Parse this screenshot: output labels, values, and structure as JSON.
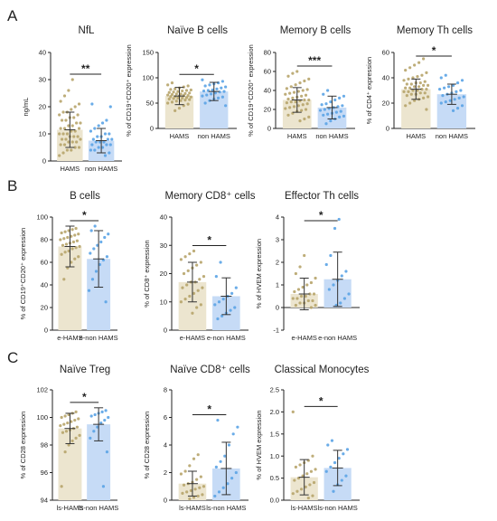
{
  "colors": {
    "hams": "#b7a46a",
    "hams_fill": "#ece5cf",
    "non_hams": "#5aa3e6",
    "non_hams_fill": "#c6dbf6",
    "axis": "#222222",
    "error_bar": "#333333"
  },
  "panel_labels": [
    "A",
    "B",
    "C"
  ],
  "chart_data": [
    {
      "type": "bar",
      "panel": "A",
      "title": "NfL",
      "ylabel": "ng/mL",
      "ylim": [
        0,
        40
      ],
      "yticks": [
        0,
        10,
        20,
        30,
        40
      ],
      "categories": [
        "HAMS",
        "non HAMS"
      ],
      "series": [
        {
          "values": [
            11.5,
            7.5
          ]
        }
      ],
      "error_sd": [
        6.5,
        4.5
      ],
      "points": [
        [
          2,
          3,
          4,
          4,
          5,
          5,
          6,
          6,
          7,
          7,
          7,
          8,
          8,
          8,
          9,
          9,
          9,
          10,
          10,
          10,
          11,
          11,
          12,
          12,
          12,
          13,
          13,
          14,
          14,
          15,
          15,
          16,
          16,
          17,
          17,
          18,
          18,
          19,
          20,
          21,
          22,
          24,
          26,
          30
        ],
        [
          2,
          3,
          4,
          4,
          5,
          5,
          6,
          6,
          6,
          7,
          7,
          7,
          8,
          8,
          8,
          9,
          9,
          10,
          10,
          11,
          12,
          13,
          14,
          15,
          20,
          21
        ]
      ],
      "significance": "**"
    },
    {
      "type": "bar",
      "panel": "A",
      "title": "Naïve B cells",
      "ylabel": "% of CD19⁺CD20⁺ expression",
      "ylim": [
        0,
        150
      ],
      "yticks": [
        0,
        50,
        100,
        150
      ],
      "categories": [
        "HAMS",
        "non HAMS"
      ],
      "series": [
        {
          "values": [
            64,
            73
          ]
        }
      ],
      "error_sd": [
        17,
        18
      ],
      "points": [
        [
          35,
          40,
          45,
          48,
          50,
          52,
          54,
          55,
          56,
          57,
          58,
          59,
          60,
          60,
          61,
          62,
          63,
          63,
          64,
          65,
          65,
          66,
          67,
          68,
          68,
          69,
          70,
          71,
          72,
          73,
          74,
          75,
          76,
          77,
          78,
          80,
          82,
          84,
          86,
          90
        ],
        [
          45,
          50,
          55,
          58,
          60,
          62,
          64,
          66,
          68,
          70,
          72,
          73,
          74,
          75,
          76,
          78,
          80,
          82,
          84,
          86,
          88,
          90,
          93,
          96
        ]
      ],
      "significance": "*"
    },
    {
      "type": "bar",
      "panel": "A",
      "title": "Memory B cells",
      "ylabel": "% of CD19⁺CD20⁺ expression",
      "ylim": [
        0,
        80
      ],
      "yticks": [
        0,
        20,
        40,
        60,
        80
      ],
      "categories": [
        "HAMS",
        "non HAMS"
      ],
      "series": [
        {
          "values": [
            30,
            22
          ]
        }
      ],
      "error_sd": [
        13,
        12
      ],
      "points": [
        [
          8,
          10,
          12,
          14,
          16,
          18,
          19,
          20,
          21,
          22,
          23,
          24,
          25,
          26,
          27,
          28,
          28,
          29,
          30,
          30,
          31,
          32,
          33,
          34,
          35,
          36,
          37,
          38,
          39,
          40,
          41,
          42,
          44,
          46,
          48,
          50,
          52,
          55,
          58,
          60
        ],
        [
          5,
          8,
          10,
          12,
          13,
          14,
          15,
          16,
          17,
          18,
          19,
          20,
          21,
          22,
          23,
          24,
          25,
          26,
          28,
          30,
          32,
          34,
          36,
          40
        ]
      ],
      "significance": "***"
    },
    {
      "type": "bar",
      "panel": "A",
      "title": "Memory Th cells",
      "ylabel": "% of CD4⁺ expression",
      "ylim": [
        0,
        60
      ],
      "yticks": [
        0,
        20,
        40,
        60
      ],
      "categories": [
        "HAMS",
        "non HAMS"
      ],
      "series": [
        {
          "values": [
            31,
            27
          ]
        }
      ],
      "error_sd": [
        8,
        8
      ],
      "points": [
        [
          15,
          18,
          20,
          22,
          23,
          24,
          25,
          26,
          27,
          27,
          28,
          28,
          29,
          29,
          30,
          30,
          31,
          31,
          32,
          32,
          33,
          33,
          34,
          34,
          35,
          35,
          36,
          36,
          37,
          38,
          39,
          40,
          41,
          42,
          44,
          46,
          48,
          50,
          52,
          55
        ],
        [
          14,
          16,
          18,
          20,
          21,
          22,
          23,
          24,
          25,
          26,
          27,
          28,
          29,
          30,
          31,
          32,
          33,
          34,
          36,
          38,
          40,
          42
        ]
      ],
      "significance": "*"
    },
    {
      "type": "bar",
      "panel": "B",
      "title": "B cells",
      "ylabel": "% of CD19⁺CD20⁺ expression",
      "ylim": [
        0,
        100
      ],
      "yticks": [
        0,
        20,
        40,
        60,
        80,
        100
      ],
      "categories": [
        "e-HAMS",
        "e-non HAMS"
      ],
      "series": [
        {
          "values": [
            74,
            63
          ]
        }
      ],
      "error_sd": [
        18,
        25
      ],
      "points": [
        [
          45,
          55,
          60,
          63,
          65,
          67,
          69,
          70,
          72,
          73,
          74,
          75,
          76,
          77,
          78,
          79,
          80,
          81,
          82,
          83,
          84,
          85,
          86,
          87,
          88,
          89,
          90
        ],
        [
          25,
          35,
          45,
          52,
          58,
          62,
          65,
          68,
          72,
          75,
          78,
          82,
          85,
          88,
          92
        ]
      ],
      "significance": "*"
    },
    {
      "type": "bar",
      "panel": "B",
      "title": "Memory CD8⁺ cells",
      "ylabel": "% of CD8⁺ expression",
      "ylim": [
        0,
        40
      ],
      "yticks": [
        0,
        10,
        20,
        30,
        40
      ],
      "categories": [
        "e-HAMS",
        "e-non HAMS"
      ],
      "series": [
        {
          "values": [
            17,
            12
          ]
        }
      ],
      "error_sd": [
        7,
        6.5
      ],
      "points": [
        [
          6,
          8,
          9,
          10,
          11,
          12,
          13,
          14,
          15,
          15,
          16,
          17,
          17,
          18,
          19,
          20,
          21,
          22,
          23,
          24,
          25,
          26,
          27,
          28
        ],
        [
          4,
          5,
          6,
          7,
          8,
          9,
          10,
          11,
          12,
          13,
          15,
          19,
          24
        ]
      ],
      "significance": "*"
    },
    {
      "type": "bar",
      "panel": "B",
      "title": "Effector Th cells",
      "ylabel": "% of HVEM expression",
      "ylim": [
        -1,
        4
      ],
      "yticks": [
        -1,
        0,
        1,
        2,
        3,
        4
      ],
      "categories": [
        "e-HAMS",
        "e-non HAMS"
      ],
      "series": [
        {
          "values": [
            0.6,
            1.25
          ]
        }
      ],
      "error_sd": [
        0.7,
        1.2
      ],
      "points": [
        [
          0.0,
          0.1,
          0.1,
          0.2,
          0.2,
          0.3,
          0.3,
          0.4,
          0.4,
          0.5,
          0.5,
          0.6,
          0.6,
          0.7,
          0.8,
          0.9,
          1.0,
          1.1,
          1.3,
          1.5,
          1.8,
          2.3
        ],
        [
          0.1,
          0.2,
          0.4,
          0.6,
          0.8,
          1.0,
          1.2,
          1.4,
          1.6,
          1.9,
          2.3,
          3.5,
          3.9
        ]
      ],
      "significance": "*"
    },
    {
      "type": "bar",
      "panel": "C",
      "title": "Naïve Treg",
      "ylabel": "% of CD28 expression",
      "ylim": [
        94,
        102
      ],
      "yticks": [
        94,
        96,
        98,
        100,
        102
      ],
      "categories": [
        "ls-HAMS",
        "ls-non HAMS"
      ],
      "series": [
        {
          "values": [
            99.2,
            99.5
          ]
        }
      ],
      "error_sd": [
        1.1,
        1.2
      ],
      "points": [
        [
          95.0,
          97.5,
          98.0,
          98.3,
          98.5,
          98.7,
          98.9,
          99.0,
          99.1,
          99.2,
          99.3,
          99.4,
          99.5,
          99.6,
          99.7,
          99.8,
          99.9,
          100.0,
          100.1,
          100.2,
          100.3,
          100.4
        ],
        [
          95.0,
          97.5,
          98.5,
          99.0,
          99.3,
          99.6,
          99.8,
          100.0,
          100.1,
          100.2,
          100.3,
          100.4,
          100.5
        ]
      ],
      "significance": "*"
    },
    {
      "type": "bar",
      "panel": "C",
      "title": "Naïve CD8⁺ cells",
      "ylabel": "% of CD28 expression",
      "ylim": [
        0,
        8
      ],
      "yticks": [
        0,
        2,
        4,
        6,
        8
      ],
      "categories": [
        "ls-HAMS",
        "ls-non HAMS"
      ],
      "series": [
        {
          "values": [
            1.2,
            2.3
          ]
        }
      ],
      "error_sd": [
        0.9,
        1.9
      ],
      "points": [
        [
          0.1,
          0.2,
          0.3,
          0.4,
          0.5,
          0.6,
          0.7,
          0.8,
          0.9,
          1.0,
          1.1,
          1.2,
          1.3,
          1.5,
          1.7,
          1.9,
          2.1,
          2.5,
          3.0,
          3.3
        ],
        [
          0.3,
          0.6,
          0.9,
          1.2,
          1.6,
          2.0,
          2.4,
          2.8,
          3.2,
          4.0,
          4.8,
          5.3,
          5.8
        ]
      ],
      "significance": "*"
    },
    {
      "type": "bar",
      "panel": "C",
      "title": "Classical Monocytes",
      "ylabel": "% of HVEM expression",
      "ylim": [
        0,
        2.5
      ],
      "yticks": [
        0.0,
        0.5,
        1.0,
        1.5,
        2.0,
        2.5
      ],
      "categories": [
        "ls-HAMS",
        "ls-non HAMS"
      ],
      "series": [
        {
          "values": [
            0.52,
            0.73
          ]
        }
      ],
      "error_sd": [
        0.4,
        0.4
      ],
      "points": [
        [
          0.05,
          0.1,
          0.15,
          0.2,
          0.25,
          0.3,
          0.35,
          0.4,
          0.45,
          0.5,
          0.55,
          0.6,
          0.65,
          0.7,
          0.75,
          0.8,
          0.85,
          0.9,
          1.0,
          2.0
        ],
        [
          0.2,
          0.35,
          0.45,
          0.55,
          0.65,
          0.75,
          0.85,
          0.95,
          1.05,
          1.15,
          1.25,
          1.35
        ]
      ],
      "significance": "*"
    }
  ]
}
